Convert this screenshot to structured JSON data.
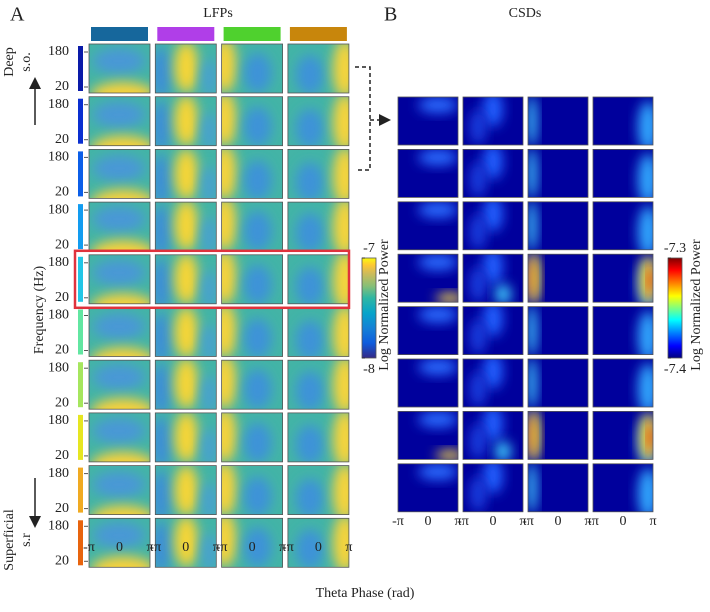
{
  "chart_data": [
    {
      "type": "heatmap",
      "panel_label": "A",
      "title": "LFPs",
      "y_label": "Frequency (Hz)",
      "x_label": "Theta Phase (rad)",
      "colorbar_label": "Log Normalized Power",
      "colormap": "parula",
      "clim": [
        -8,
        -7
      ],
      "cticks": [
        -8,
        -7
      ],
      "ylim": [
        20,
        180
      ],
      "yticks": [
        20,
        180
      ],
      "xlim": [
        -3.1416,
        3.1416
      ],
      "xticks": [
        {
          "value": -3.1416,
          "label": "-π"
        },
        0,
        {
          "value": 3.1416,
          "label": "π"
        }
      ],
      "column_colors": [
        "#16679c",
        "#b03ee8",
        "#4fd12e",
        "#c8860c"
      ],
      "row_colors": [
        "#0a1aa8",
        "#0a2fd0",
        "#0b5ee8",
        "#129cf0",
        "#22c6e6",
        "#62e6a2",
        "#a6e65e",
        "#e6e622",
        "#f0aa22",
        "#e8640e"
      ],
      "annotations": [
        "Deep",
        "s.o.",
        "Superficial",
        "s.r"
      ]
    },
    {
      "type": "heatmap",
      "panel_label": "B",
      "title": "CSDs",
      "colorbar_label": "Log Normalized Power",
      "colormap": "jet",
      "clim": [
        -7.4,
        -7.3
      ],
      "cticks": [
        -7.4,
        -7.3
      ],
      "xlim": [
        -3.1416,
        3.1416
      ],
      "xticks": [
        {
          "value": -3.1416,
          "label": "-π"
        },
        0,
        {
          "value": 3.1416,
          "label": "π"
        }
      ]
    }
  ]
}
